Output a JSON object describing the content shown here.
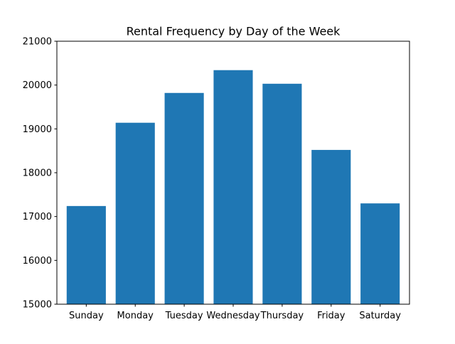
{
  "chart_data": {
    "type": "bar",
    "title": "Rental Frequency by Day of the Week",
    "xlabel": "",
    "ylabel": "",
    "categories": [
      "Sunday",
      "Monday",
      "Tuesday",
      "Wednesday",
      "Thursday",
      "Friday",
      "Saturday"
    ],
    "values": [
      17240,
      19140,
      19820,
      20340,
      20030,
      18520,
      17300
    ],
    "ylim": [
      15000,
      21000
    ],
    "yticks": [
      15000,
      16000,
      17000,
      18000,
      19000,
      20000,
      21000
    ],
    "ytick_labels": [
      "15000",
      "16000",
      "17000",
      "18000",
      "19000",
      "20000",
      "21000"
    ],
    "bar_color": "#1f77b4",
    "grid": false,
    "legend": "none"
  }
}
